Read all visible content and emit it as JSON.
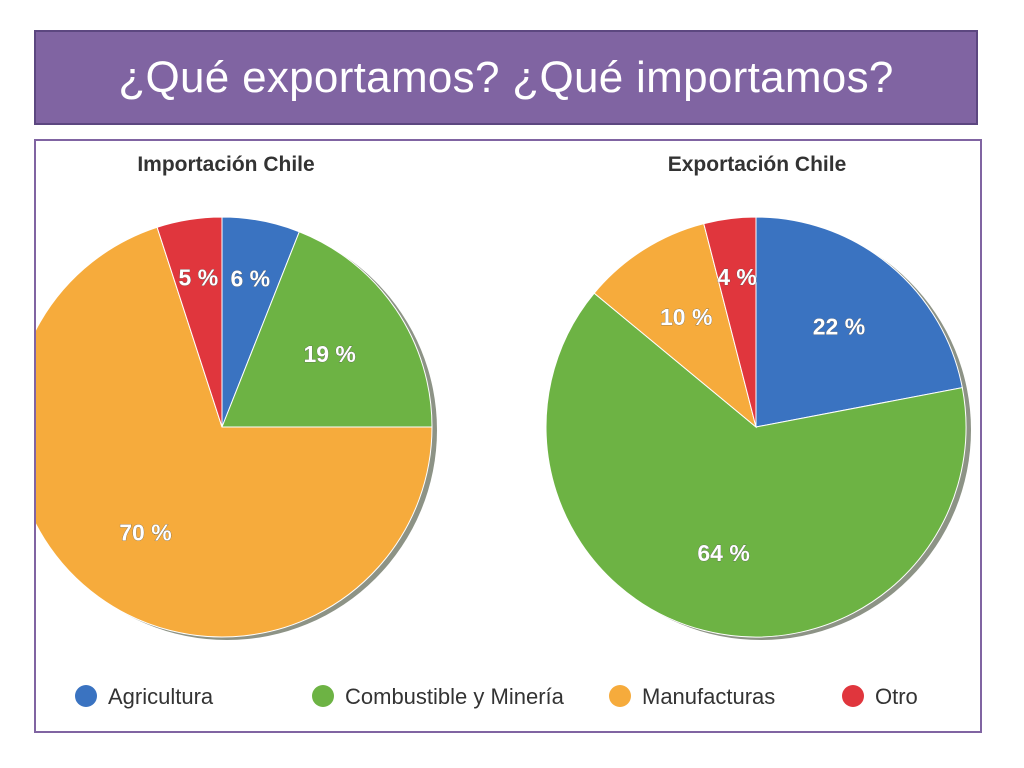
{
  "slide": {
    "title": "¿Qué exportamos? ¿Qué importamos?"
  },
  "legend": [
    {
      "label": "Agricultura",
      "color": "#3a73c1"
    },
    {
      "label": "Combustible y Minería",
      "color": "#6db344"
    },
    {
      "label": "Manufacturas",
      "color": "#f6ab3c"
    },
    {
      "label": "Otro",
      "color": "#e0363d"
    }
  ],
  "chart_data": [
    {
      "type": "pie",
      "title": "Importación Chile",
      "slices": [
        {
          "category": "Agricultura",
          "value": 6,
          "label": "6 %"
        },
        {
          "category": "Combustible y Minería",
          "value": 19,
          "label": "19 %"
        },
        {
          "category": "Manufacturas",
          "value": 70,
          "label": "70 %"
        },
        {
          "category": "Otro",
          "value": 5,
          "label": "5 %"
        }
      ]
    },
    {
      "type": "pie",
      "title": "Exportación Chile",
      "slices": [
        {
          "category": "Agricultura",
          "value": 22,
          "label": "22 %"
        },
        {
          "category": "Combustible y Minería",
          "value": 64,
          "label": "64 %"
        },
        {
          "category": "Manufacturas",
          "value": 10,
          "label": "10 %"
        },
        {
          "category": "Otro",
          "value": 4,
          "label": "4 %"
        }
      ]
    }
  ]
}
